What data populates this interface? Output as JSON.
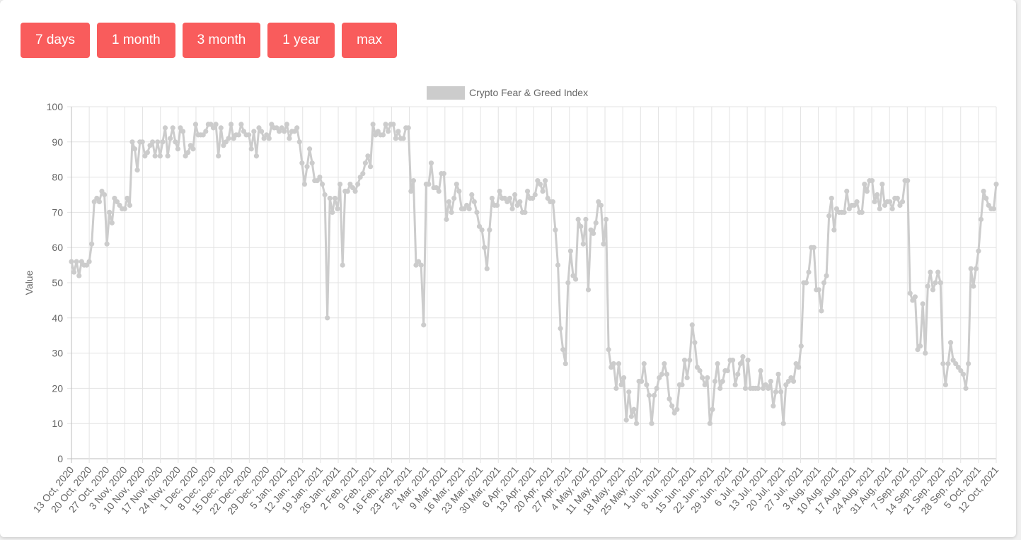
{
  "range_buttons": [
    {
      "label": "7 days"
    },
    {
      "label": "1 month"
    },
    {
      "label": "3 month"
    },
    {
      "label": "1 year"
    },
    {
      "label": "max"
    }
  ],
  "chart_data": {
    "type": "line",
    "series": [
      {
        "name": "Crypto Fear & Greed Index",
        "color": "#cccccc",
        "values": [
          56,
          53,
          56,
          52,
          56,
          55,
          55,
          56,
          61,
          73,
          74,
          73,
          76,
          75,
          61,
          70,
          67,
          74,
          73,
          72,
          71,
          71,
          74,
          72,
          90,
          88,
          82,
          90,
          90,
          86,
          87,
          89,
          90,
          86,
          90,
          86,
          90,
          94,
          86,
          91,
          94,
          90,
          88,
          94,
          93,
          86,
          87,
          89,
          88,
          95,
          92,
          92,
          92,
          93,
          95,
          95,
          94,
          95,
          86,
          94,
          89,
          90,
          91,
          95,
          91,
          92,
          92,
          95,
          93,
          92,
          92,
          88,
          93,
          86,
          94,
          93,
          91,
          92,
          91,
          95,
          94,
          94,
          93,
          94,
          93,
          95,
          91,
          93,
          93,
          94,
          90,
          84,
          78,
          83,
          88,
          84,
          79,
          79,
          80,
          78,
          75,
          40,
          74,
          70,
          74,
          71,
          78,
          55,
          76,
          76,
          78,
          77,
          76,
          78,
          80,
          81,
          84,
          86,
          83,
          95,
          92,
          93,
          92,
          92,
          95,
          93,
          95,
          95,
          91,
          93,
          91,
          91,
          94,
          94,
          76,
          79,
          55,
          56,
          55,
          38,
          78,
          78,
          84,
          77,
          77,
          76,
          81,
          81,
          68,
          73,
          70,
          74,
          78,
          76,
          71,
          71,
          72,
          71,
          75,
          73,
          70,
          66,
          65,
          60,
          54,
          65,
          74,
          72,
          72,
          76,
          74,
          74,
          73,
          74,
          71,
          75,
          72,
          73,
          70,
          70,
          76,
          74,
          74,
          75,
          79,
          78,
          76,
          79,
          74,
          73,
          73,
          65,
          55,
          37,
          31,
          27,
          50,
          59,
          52,
          51,
          68,
          66,
          61,
          68,
          48,
          65,
          64,
          67,
          73,
          72,
          61,
          68,
          31,
          26,
          27,
          20,
          27,
          21,
          23,
          11,
          19,
          12,
          14,
          10,
          22,
          22,
          27,
          21,
          18,
          10,
          18,
          20,
          23,
          24,
          27,
          24,
          17,
          15,
          13,
          14,
          21,
          21,
          28,
          23,
          28,
          38,
          33,
          26,
          25,
          23,
          21,
          23,
          10,
          14,
          22,
          27,
          20,
          22,
          25,
          25,
          28,
          28,
          21,
          24,
          27,
          29,
          20,
          28,
          20,
          20,
          20,
          20,
          25,
          20,
          21,
          20,
          22,
          15,
          19,
          24,
          19,
          10,
          21,
          22,
          23,
          22,
          27,
          26,
          32,
          50,
          50,
          53,
          60,
          60,
          48,
          48,
          42,
          50,
          52,
          69,
          74,
          65,
          71,
          70,
          70,
          70,
          76,
          71,
          72,
          72,
          73,
          70,
          70,
          78,
          76,
          79,
          79,
          73,
          75,
          71,
          78,
          72,
          73,
          73,
          71,
          74,
          74,
          72,
          73,
          79,
          79,
          47,
          45,
          46,
          31,
          32,
          44,
          30,
          49,
          53,
          48,
          50,
          53,
          50,
          27,
          21,
          27,
          33,
          28,
          27,
          26,
          25,
          24,
          20,
          27,
          54,
          49,
          54,
          59,
          68,
          76,
          74,
          72,
          71,
          71,
          78
        ]
      }
    ],
    "x_tick_labels": [
      "13 Oct, 2020",
      "20 Oct, 2020",
      "27 Oct, 2020",
      "3 Nov, 2020",
      "10 Nov, 2020",
      "17 Nov, 2020",
      "24 Nov, 2020",
      "1 Dec, 2020",
      "8 Dec, 2020",
      "15 Dec, 2020",
      "22 Dec, 2020",
      "29 Dec, 2020",
      "5 Jan, 2021",
      "12 Jan, 2021",
      "19 Jan, 2021",
      "26 Jan, 2021",
      "2 Feb, 2021",
      "9 Feb, 2021",
      "16 Feb, 2021",
      "23 Feb, 2021",
      "2 Mar, 2021",
      "9 Mar, 2021",
      "16 Mar, 2021",
      "23 Mar, 2021",
      "30 Mar, 2021",
      "6 Apr, 2021",
      "13 Apr, 2021",
      "20 Apr, 2021",
      "27 Apr, 2021",
      "4 May, 2021",
      "11 May, 2021",
      "18 May, 2021",
      "25 May, 2021",
      "1 Jun, 2021",
      "8 Jun, 2021",
      "15 Jun, 2021",
      "22 Jun, 2021",
      "29 Jun, 2021",
      "6 Jul, 2021",
      "13 Jul, 2021",
      "20 Jul, 2021",
      "27 Jul, 2021",
      "3 Aug, 2021",
      "10 Aug, 2021",
      "17 Aug, 2021",
      "24 Aug, 2021",
      "31 Aug, 2021",
      "7 Sep, 2021",
      "14 Sep, 2021",
      "21 Sep, 2021",
      "28 Sep, 2021",
      "5 Oct, 2021",
      "12 Oct, 2021"
    ],
    "xlabel": "",
    "ylabel": "Value",
    "ylim": [
      0,
      100
    ],
    "y_ticks": [
      0,
      10,
      20,
      30,
      40,
      50,
      60,
      70,
      80,
      90,
      100
    ],
    "grid": true,
    "legend_position": "top-center"
  }
}
